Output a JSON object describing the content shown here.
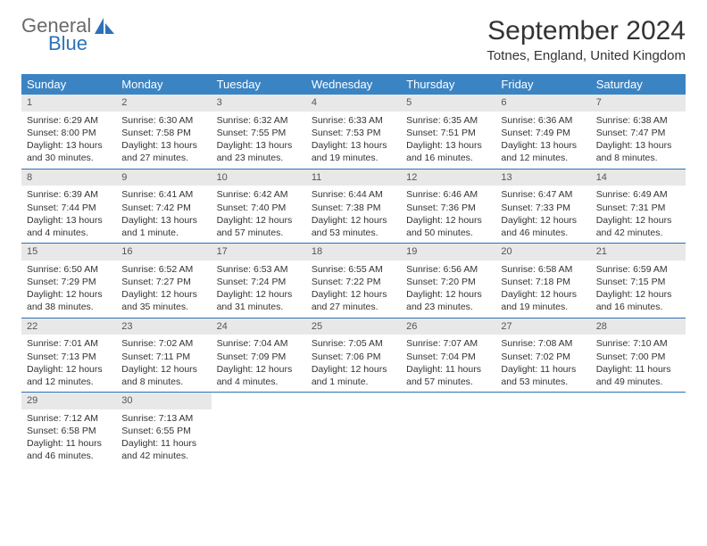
{
  "logo": {
    "word1": "General",
    "word2": "Blue"
  },
  "title": "September 2024",
  "location": "Totnes, England, United Kingdom",
  "colors": {
    "header_bg": "#3b84c4",
    "header_text": "#ffffff",
    "daynum_bg": "#e8e8e8",
    "row_border": "#2d71b8",
    "logo_gray": "#6a6a6a",
    "logo_blue": "#2d71b8"
  },
  "weekdays": [
    "Sunday",
    "Monday",
    "Tuesday",
    "Wednesday",
    "Thursday",
    "Friday",
    "Saturday"
  ],
  "days": [
    {
      "n": "1",
      "sr": "Sunrise: 6:29 AM",
      "ss": "Sunset: 8:00 PM",
      "dl1": "Daylight: 13 hours",
      "dl2": "and 30 minutes."
    },
    {
      "n": "2",
      "sr": "Sunrise: 6:30 AM",
      "ss": "Sunset: 7:58 PM",
      "dl1": "Daylight: 13 hours",
      "dl2": "and 27 minutes."
    },
    {
      "n": "3",
      "sr": "Sunrise: 6:32 AM",
      "ss": "Sunset: 7:55 PM",
      "dl1": "Daylight: 13 hours",
      "dl2": "and 23 minutes."
    },
    {
      "n": "4",
      "sr": "Sunrise: 6:33 AM",
      "ss": "Sunset: 7:53 PM",
      "dl1": "Daylight: 13 hours",
      "dl2": "and 19 minutes."
    },
    {
      "n": "5",
      "sr": "Sunrise: 6:35 AM",
      "ss": "Sunset: 7:51 PM",
      "dl1": "Daylight: 13 hours",
      "dl2": "and 16 minutes."
    },
    {
      "n": "6",
      "sr": "Sunrise: 6:36 AM",
      "ss": "Sunset: 7:49 PM",
      "dl1": "Daylight: 13 hours",
      "dl2": "and 12 minutes."
    },
    {
      "n": "7",
      "sr": "Sunrise: 6:38 AM",
      "ss": "Sunset: 7:47 PM",
      "dl1": "Daylight: 13 hours",
      "dl2": "and 8 minutes."
    },
    {
      "n": "8",
      "sr": "Sunrise: 6:39 AM",
      "ss": "Sunset: 7:44 PM",
      "dl1": "Daylight: 13 hours",
      "dl2": "and 4 minutes."
    },
    {
      "n": "9",
      "sr": "Sunrise: 6:41 AM",
      "ss": "Sunset: 7:42 PM",
      "dl1": "Daylight: 13 hours",
      "dl2": "and 1 minute."
    },
    {
      "n": "10",
      "sr": "Sunrise: 6:42 AM",
      "ss": "Sunset: 7:40 PM",
      "dl1": "Daylight: 12 hours",
      "dl2": "and 57 minutes."
    },
    {
      "n": "11",
      "sr": "Sunrise: 6:44 AM",
      "ss": "Sunset: 7:38 PM",
      "dl1": "Daylight: 12 hours",
      "dl2": "and 53 minutes."
    },
    {
      "n": "12",
      "sr": "Sunrise: 6:46 AM",
      "ss": "Sunset: 7:36 PM",
      "dl1": "Daylight: 12 hours",
      "dl2": "and 50 minutes."
    },
    {
      "n": "13",
      "sr": "Sunrise: 6:47 AM",
      "ss": "Sunset: 7:33 PM",
      "dl1": "Daylight: 12 hours",
      "dl2": "and 46 minutes."
    },
    {
      "n": "14",
      "sr": "Sunrise: 6:49 AM",
      "ss": "Sunset: 7:31 PM",
      "dl1": "Daylight: 12 hours",
      "dl2": "and 42 minutes."
    },
    {
      "n": "15",
      "sr": "Sunrise: 6:50 AM",
      "ss": "Sunset: 7:29 PM",
      "dl1": "Daylight: 12 hours",
      "dl2": "and 38 minutes."
    },
    {
      "n": "16",
      "sr": "Sunrise: 6:52 AM",
      "ss": "Sunset: 7:27 PM",
      "dl1": "Daylight: 12 hours",
      "dl2": "and 35 minutes."
    },
    {
      "n": "17",
      "sr": "Sunrise: 6:53 AM",
      "ss": "Sunset: 7:24 PM",
      "dl1": "Daylight: 12 hours",
      "dl2": "and 31 minutes."
    },
    {
      "n": "18",
      "sr": "Sunrise: 6:55 AM",
      "ss": "Sunset: 7:22 PM",
      "dl1": "Daylight: 12 hours",
      "dl2": "and 27 minutes."
    },
    {
      "n": "19",
      "sr": "Sunrise: 6:56 AM",
      "ss": "Sunset: 7:20 PM",
      "dl1": "Daylight: 12 hours",
      "dl2": "and 23 minutes."
    },
    {
      "n": "20",
      "sr": "Sunrise: 6:58 AM",
      "ss": "Sunset: 7:18 PM",
      "dl1": "Daylight: 12 hours",
      "dl2": "and 19 minutes."
    },
    {
      "n": "21",
      "sr": "Sunrise: 6:59 AM",
      "ss": "Sunset: 7:15 PM",
      "dl1": "Daylight: 12 hours",
      "dl2": "and 16 minutes."
    },
    {
      "n": "22",
      "sr": "Sunrise: 7:01 AM",
      "ss": "Sunset: 7:13 PM",
      "dl1": "Daylight: 12 hours",
      "dl2": "and 12 minutes."
    },
    {
      "n": "23",
      "sr": "Sunrise: 7:02 AM",
      "ss": "Sunset: 7:11 PM",
      "dl1": "Daylight: 12 hours",
      "dl2": "and 8 minutes."
    },
    {
      "n": "24",
      "sr": "Sunrise: 7:04 AM",
      "ss": "Sunset: 7:09 PM",
      "dl1": "Daylight: 12 hours",
      "dl2": "and 4 minutes."
    },
    {
      "n": "25",
      "sr": "Sunrise: 7:05 AM",
      "ss": "Sunset: 7:06 PM",
      "dl1": "Daylight: 12 hours",
      "dl2": "and 1 minute."
    },
    {
      "n": "26",
      "sr": "Sunrise: 7:07 AM",
      "ss": "Sunset: 7:04 PM",
      "dl1": "Daylight: 11 hours",
      "dl2": "and 57 minutes."
    },
    {
      "n": "27",
      "sr": "Sunrise: 7:08 AM",
      "ss": "Sunset: 7:02 PM",
      "dl1": "Daylight: 11 hours",
      "dl2": "and 53 minutes."
    },
    {
      "n": "28",
      "sr": "Sunrise: 7:10 AM",
      "ss": "Sunset: 7:00 PM",
      "dl1": "Daylight: 11 hours",
      "dl2": "and 49 minutes."
    },
    {
      "n": "29",
      "sr": "Sunrise: 7:12 AM",
      "ss": "Sunset: 6:58 PM",
      "dl1": "Daylight: 11 hours",
      "dl2": "and 46 minutes."
    },
    {
      "n": "30",
      "sr": "Sunrise: 7:13 AM",
      "ss": "Sunset: 6:55 PM",
      "dl1": "Daylight: 11 hours",
      "dl2": "and 42 minutes."
    }
  ]
}
